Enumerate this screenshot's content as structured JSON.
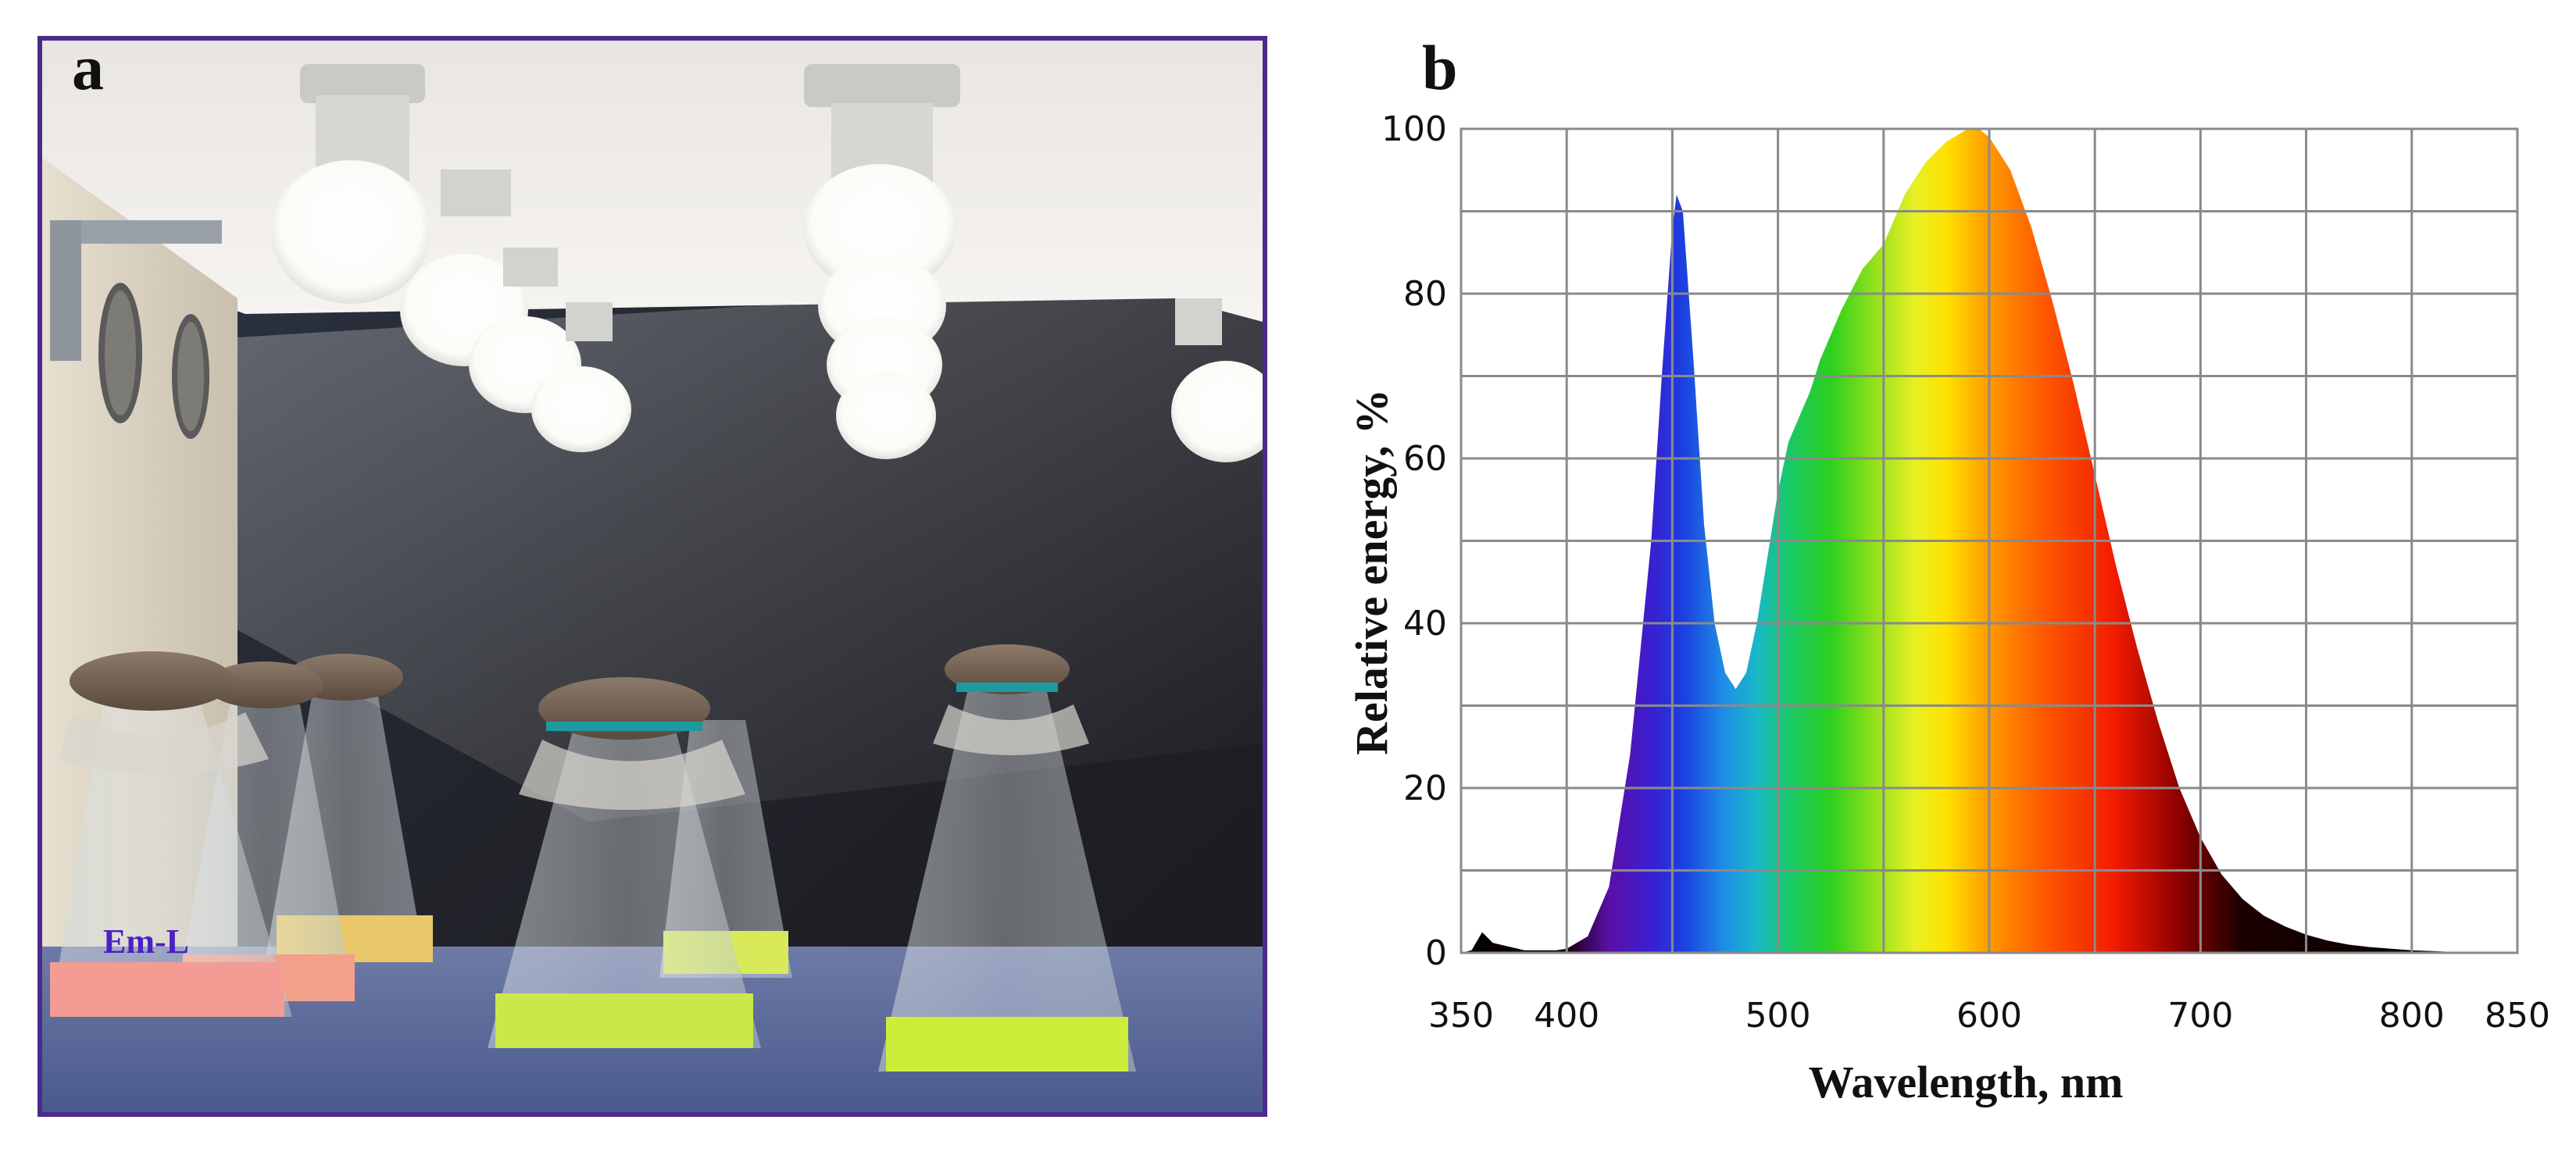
{
  "panel_a": {
    "letter": "a",
    "flask_label": "Em-L",
    "colors": {
      "frame": "#4b2a8c",
      "label": "#4a21c2",
      "pink_culture": "#f29c94",
      "green_culture": "#cbe84a",
      "yellow_culture": "#e8c86a"
    }
  },
  "panel_b": {
    "letter": "b"
  },
  "chart_data": {
    "type": "area",
    "title": "",
    "xlabel": "Wavelength, nm",
    "ylabel": "Relative energy, %",
    "xlim": [
      350,
      850
    ],
    "ylim": [
      0,
      100
    ],
    "grid": true,
    "x_ticks": [
      350,
      400,
      500,
      600,
      700,
      800,
      850
    ],
    "y_ticks": [
      0,
      20,
      40,
      60,
      80,
      100
    ],
    "fill": "visible-spectrum gradient",
    "series": [
      {
        "x": [
          350,
          355,
          360,
          365,
          380,
          395,
          400,
          410,
          420,
          430,
          440,
          445,
          450,
          452,
          455,
          460,
          465,
          470,
          475,
          480,
          485,
          490,
          495,
          500,
          505,
          510,
          515,
          520,
          525,
          530,
          540,
          550,
          560,
          570,
          580,
          590,
          595,
          600,
          605,
          610,
          620,
          630,
          640,
          650,
          660,
          670,
          680,
          690,
          700,
          710,
          720,
          730,
          740,
          750,
          760,
          770,
          780,
          790,
          800,
          820,
          850
        ],
        "y": [
          0,
          0.3,
          2.5,
          1.2,
          0.3,
          0.3,
          0.5,
          2,
          8,
          24,
          50,
          70,
          88,
          92,
          90,
          72,
          52,
          40,
          34,
          32,
          34,
          40,
          48,
          56,
          62,
          65,
          68,
          72,
          75,
          78,
          83,
          86,
          92,
          96,
          98.5,
          100,
          100,
          99,
          97,
          95,
          88,
          79,
          69,
          58,
          47,
          37,
          28,
          20,
          14,
          9.5,
          6.5,
          4.5,
          3.2,
          2.2,
          1.5,
          1.0,
          0.7,
          0.5,
          0.3,
          0.1,
          0
        ]
      }
    ]
  }
}
